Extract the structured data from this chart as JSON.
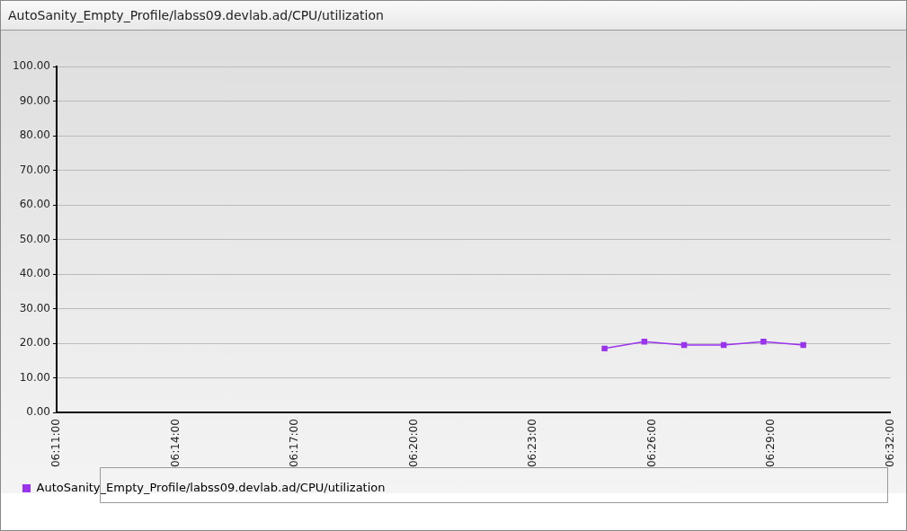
{
  "chart_data": {
    "type": "line",
    "title": "AutoSanity_Empty_Profile/labss09.devlab.ad/CPU/utilization",
    "x": [
      6.4133,
      6.43,
      6.4467,
      6.4633,
      6.48,
      6.4967
    ],
    "series": [
      {
        "name": "AutoSanity_Empty_Profile/labss09.devlab.ad/CPU/utilization",
        "color": "#9933ee",
        "values": [
          18.5,
          20.5,
          19.5,
          19.5,
          20.5,
          19.5
        ]
      }
    ],
    "xlim": [
      6.1833,
      6.5333
    ],
    "xticks": [
      {
        "value": 6.1833,
        "label": "06:11:00"
      },
      {
        "value": 6.2333,
        "label": "06:14:00"
      },
      {
        "value": 6.2833,
        "label": "06:17:00"
      },
      {
        "value": 6.3333,
        "label": "06:20:00"
      },
      {
        "value": 6.3833,
        "label": "06:23:00"
      },
      {
        "value": 6.4333,
        "label": "06:26:00"
      },
      {
        "value": 6.4833,
        "label": "06:29:00"
      },
      {
        "value": 6.5333,
        "label": "06:32:00"
      }
    ],
    "ylim": [
      0,
      100
    ],
    "yticks": [
      {
        "value": 0,
        "label": "0.00"
      },
      {
        "value": 10,
        "label": "10.00"
      },
      {
        "value": 20,
        "label": "20.00"
      },
      {
        "value": 30,
        "label": "30.00"
      },
      {
        "value": 40,
        "label": "40.00"
      },
      {
        "value": 50,
        "label": "50.00"
      },
      {
        "value": 60,
        "label": "60.00"
      },
      {
        "value": 70,
        "label": "70.00"
      },
      {
        "value": 80,
        "label": "80.00"
      },
      {
        "value": 90,
        "label": "90.00"
      },
      {
        "value": 100,
        "label": "100.00"
      }
    ],
    "grid": "y",
    "legend": "bottom",
    "marker": "square",
    "line_style": "solid"
  }
}
